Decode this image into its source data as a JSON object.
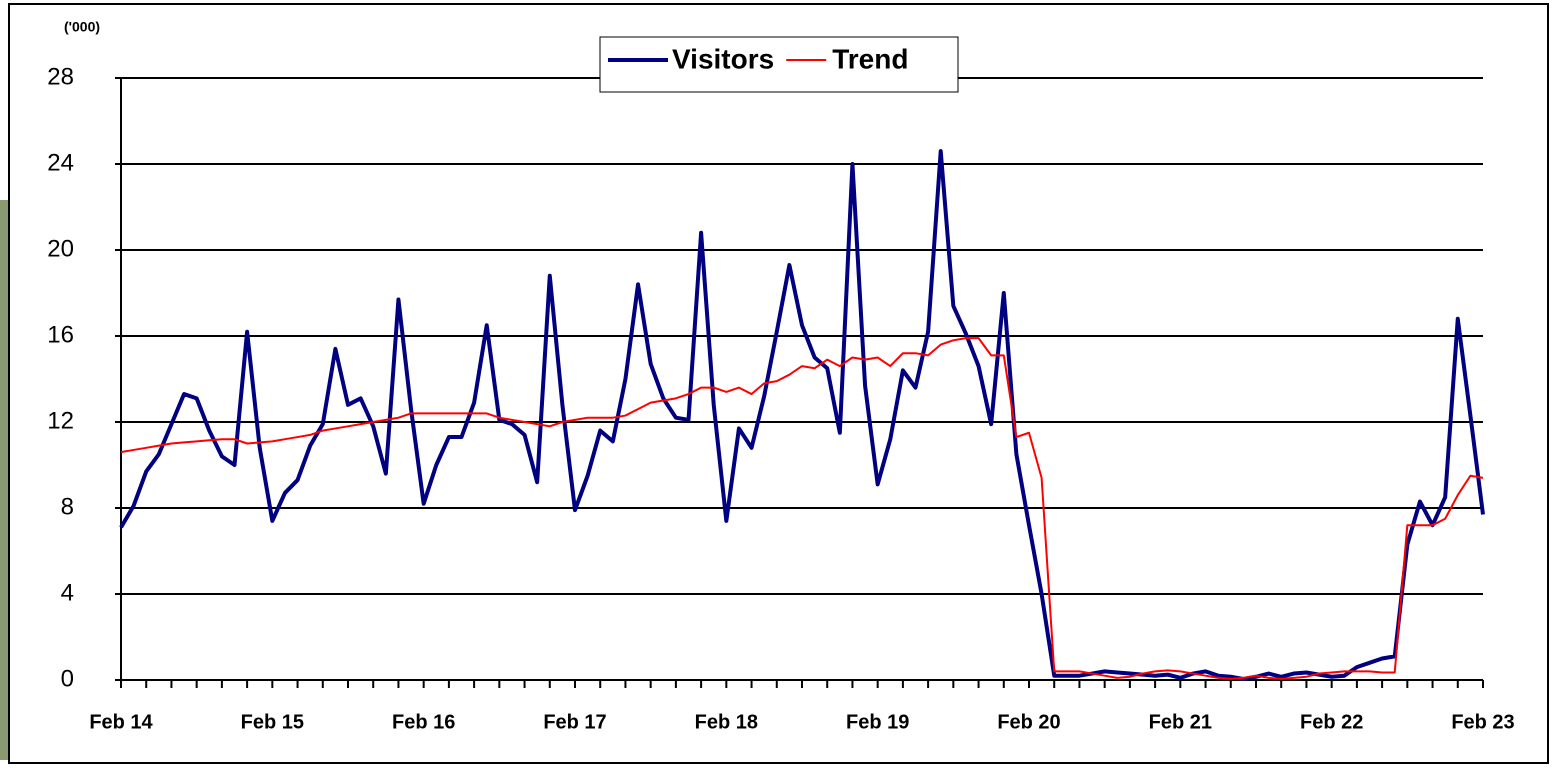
{
  "chart_data": {
    "type": "line",
    "unit_label": "('000)",
    "categories": [
      "Feb 14",
      null,
      null,
      null,
      null,
      null,
      null,
      null,
      null,
      null,
      null,
      null,
      "Feb 15",
      null,
      null,
      null,
      null,
      null,
      null,
      null,
      null,
      null,
      null,
      null,
      "Feb 16",
      null,
      null,
      null,
      null,
      null,
      null,
      null,
      null,
      null,
      null,
      null,
      "Feb 17",
      null,
      null,
      null,
      null,
      null,
      null,
      null,
      null,
      null,
      null,
      null,
      "Feb 18",
      null,
      null,
      null,
      null,
      null,
      null,
      null,
      null,
      null,
      null,
      null,
      "Feb 19",
      null,
      null,
      null,
      null,
      null,
      null,
      null,
      null,
      null,
      null,
      null,
      "Feb 20",
      null,
      null,
      null,
      null,
      null,
      null,
      null,
      null,
      null,
      null,
      null,
      "Feb 21",
      null,
      null,
      null,
      null,
      null,
      null,
      null,
      null,
      null,
      null,
      null,
      "Feb 22",
      null,
      null,
      null,
      null,
      null,
      null,
      null,
      null,
      null,
      null,
      null,
      "Feb 23"
    ],
    "series": [
      {
        "name": "Visitors",
        "color": "#000080",
        "width": 4,
        "values": [
          7.1,
          8.1,
          9.7,
          10.5,
          11.9,
          13.3,
          13.1,
          11.6,
          10.4,
          10.0,
          16.2,
          10.8,
          7.4,
          8.7,
          9.3,
          10.9,
          11.9,
          15.4,
          12.8,
          13.1,
          11.8,
          9.6,
          17.7,
          12.6,
          8.2,
          10.0,
          11.3,
          11.3,
          12.9,
          16.5,
          12.1,
          11.9,
          11.4,
          9.2,
          18.8,
          12.8,
          7.9,
          9.5,
          11.6,
          11.1,
          14.0,
          18.4,
          14.7,
          13.1,
          12.2,
          12.1,
          20.8,
          12.8,
          7.4,
          11.7,
          10.8,
          13.2,
          16.2,
          19.3,
          16.5,
          15.0,
          14.5,
          11.5,
          24.0,
          13.7,
          9.1,
          11.2,
          14.4,
          13.6,
          16.2,
          24.6,
          17.4,
          16.1,
          14.6,
          11.9,
          18.0,
          10.5,
          7.2,
          4.0,
          0.2,
          0.2,
          0.2,
          0.3,
          0.4,
          0.35,
          0.3,
          0.25,
          0.2,
          0.25,
          0.1,
          0.3,
          0.4,
          0.2,
          0.15,
          0.05,
          0.15,
          0.3,
          0.15,
          0.3,
          0.35,
          0.25,
          0.15,
          0.2,
          0.6,
          0.8,
          1.0,
          1.1,
          6.3,
          8.3,
          7.2,
          8.5,
          16.8,
          12.3,
          7.7
        ]
      },
      {
        "name": "Trend",
        "color": "#ff0000",
        "width": 2,
        "values": [
          10.6,
          10.7,
          10.8,
          10.9,
          11.0,
          11.05,
          11.1,
          11.15,
          11.2,
          11.2,
          11.0,
          11.05,
          11.1,
          11.2,
          11.3,
          11.4,
          11.6,
          11.7,
          11.8,
          11.9,
          12.0,
          12.1,
          12.2,
          12.4,
          12.4,
          12.4,
          12.4,
          12.4,
          12.4,
          12.4,
          12.2,
          12.1,
          12.0,
          11.9,
          11.8,
          12.0,
          12.1,
          12.2,
          12.2,
          12.2,
          12.3,
          12.6,
          12.9,
          13.0,
          13.1,
          13.3,
          13.6,
          13.6,
          13.4,
          13.6,
          13.3,
          13.8,
          13.9,
          14.2,
          14.6,
          14.5,
          14.9,
          14.6,
          15.0,
          14.9,
          15.0,
          14.6,
          15.2,
          15.2,
          15.1,
          15.6,
          15.8,
          15.9,
          15.9,
          15.1,
          15.1,
          11.3,
          11.5,
          9.4,
          0.4,
          0.4,
          0.4,
          0.3,
          0.2,
          0.1,
          0.15,
          0.3,
          0.4,
          0.45,
          0.4,
          0.3,
          0.2,
          0.1,
          0.05,
          0.1,
          0.2,
          0.1,
          0.05,
          0.1,
          0.15,
          0.3,
          0.35,
          0.4,
          0.4,
          0.4,
          0.35,
          0.35,
          7.2,
          7.2,
          7.2,
          7.5,
          8.6,
          9.5,
          9.4
        ]
      }
    ],
    "ylim": [
      0,
      28
    ],
    "yticks": [
      0,
      4,
      8,
      12,
      16,
      20,
      24,
      28
    ],
    "grid": true,
    "legend": "top"
  }
}
